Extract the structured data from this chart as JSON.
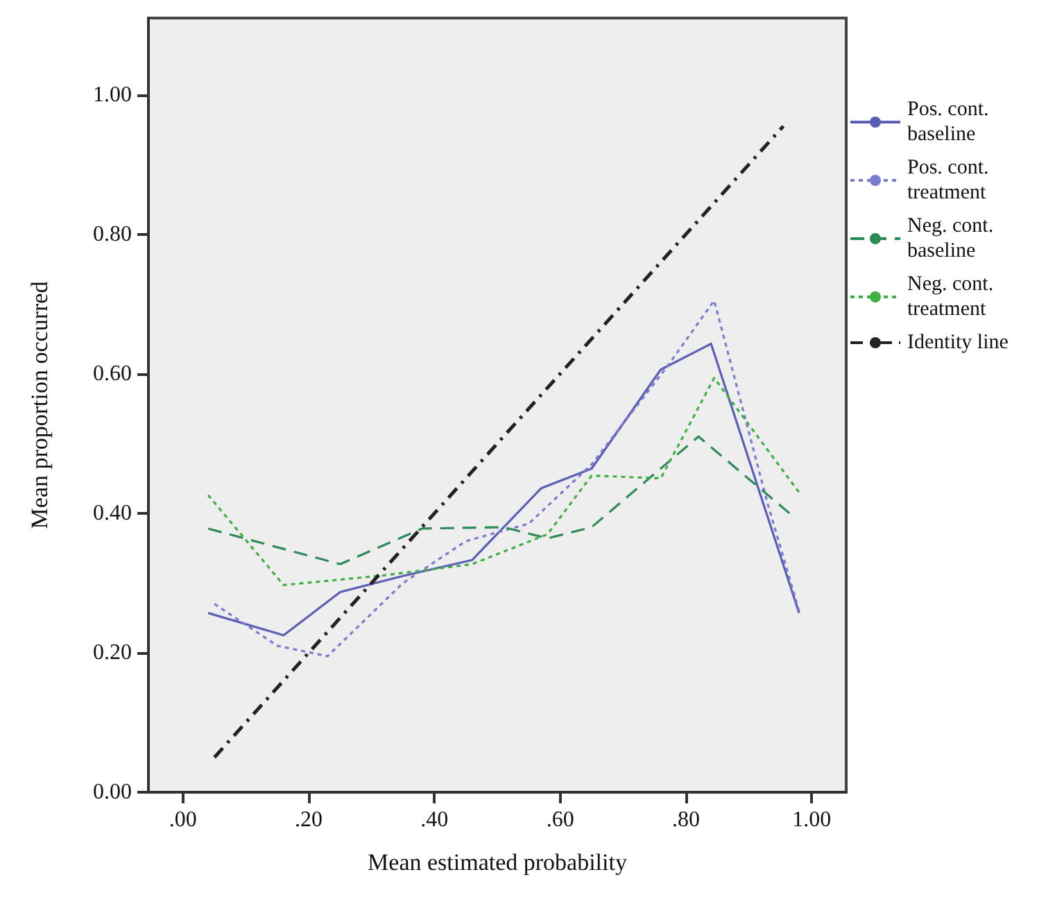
{
  "chart_data": {
    "type": "line",
    "xlabel": "Mean estimated probability",
    "ylabel": "Mean proportion occurred",
    "xlim": [
      -0.055,
      1.055
    ],
    "ylim": [
      0,
      1.11
    ],
    "xticks": [
      {
        "value": 0,
        "label": ".00"
      },
      {
        "value": 0.2,
        "label": ".20"
      },
      {
        "value": 0.4,
        "label": ".40"
      },
      {
        "value": 0.6,
        "label": ".60"
      },
      {
        "value": 0.8,
        "label": ".80"
      },
      {
        "value": 1,
        "label": "1.00"
      }
    ],
    "yticks": [
      {
        "value": 0,
        "label": "0.00"
      },
      {
        "value": 0.2,
        "label": "0.20"
      },
      {
        "value": 0.4,
        "label": "0.40"
      },
      {
        "value": 0.6,
        "label": "0.60"
      },
      {
        "value": 0.8,
        "label": "0.80"
      },
      {
        "value": 1,
        "label": "1.00"
      }
    ],
    "grid": false,
    "legend": "right",
    "marker": "none",
    "series": [
      {
        "name": "Pos. cont. baseline",
        "color": "#5a5fb5",
        "line_style": "solid",
        "x": [
          0.04,
          0.16,
          0.25,
          0.35,
          0.46,
          0.57,
          0.65,
          0.76,
          0.84,
          0.98
        ],
        "values": [
          0.257,
          0.225,
          0.287,
          0.31,
          0.333,
          0.436,
          0.464,
          0.606,
          0.643,
          0.257
        ]
      },
      {
        "name": "Pos. cont. treatment",
        "color": "#7b7bd0",
        "line_style": "dotted",
        "x": [
          0.05,
          0.15,
          0.23,
          0.35,
          0.45,
          0.55,
          0.65,
          0.77,
          0.845,
          0.93,
          0.98
        ],
        "values": [
          0.27,
          0.21,
          0.195,
          0.3,
          0.36,
          0.385,
          0.47,
          0.61,
          0.705,
          0.414,
          0.26
        ]
      },
      {
        "name": "Neg. cont. baseline",
        "color": "#2e8b57",
        "line_style": "dashed",
        "x": [
          0.04,
          0.25,
          0.38,
          0.51,
          0.58,
          0.65,
          0.82,
          0.97
        ],
        "values": [
          0.378,
          0.327,
          0.378,
          0.38,
          0.364,
          0.38,
          0.51,
          0.396
        ]
      },
      {
        "name": "Neg. cont. treatment",
        "color": "#3cb043",
        "line_style": "dotted",
        "x": [
          0.04,
          0.16,
          0.32,
          0.46,
          0.58,
          0.65,
          0.76,
          0.845,
          0.98
        ],
        "values": [
          0.426,
          0.297,
          0.311,
          0.327,
          0.37,
          0.454,
          0.45,
          0.594,
          0.43
        ]
      },
      {
        "name": "Identity line",
        "color": "#222222",
        "line_style": "dashdot",
        "x": [
          0.05,
          0.955
        ],
        "values": [
          0.05,
          0.955
        ]
      }
    ]
  }
}
